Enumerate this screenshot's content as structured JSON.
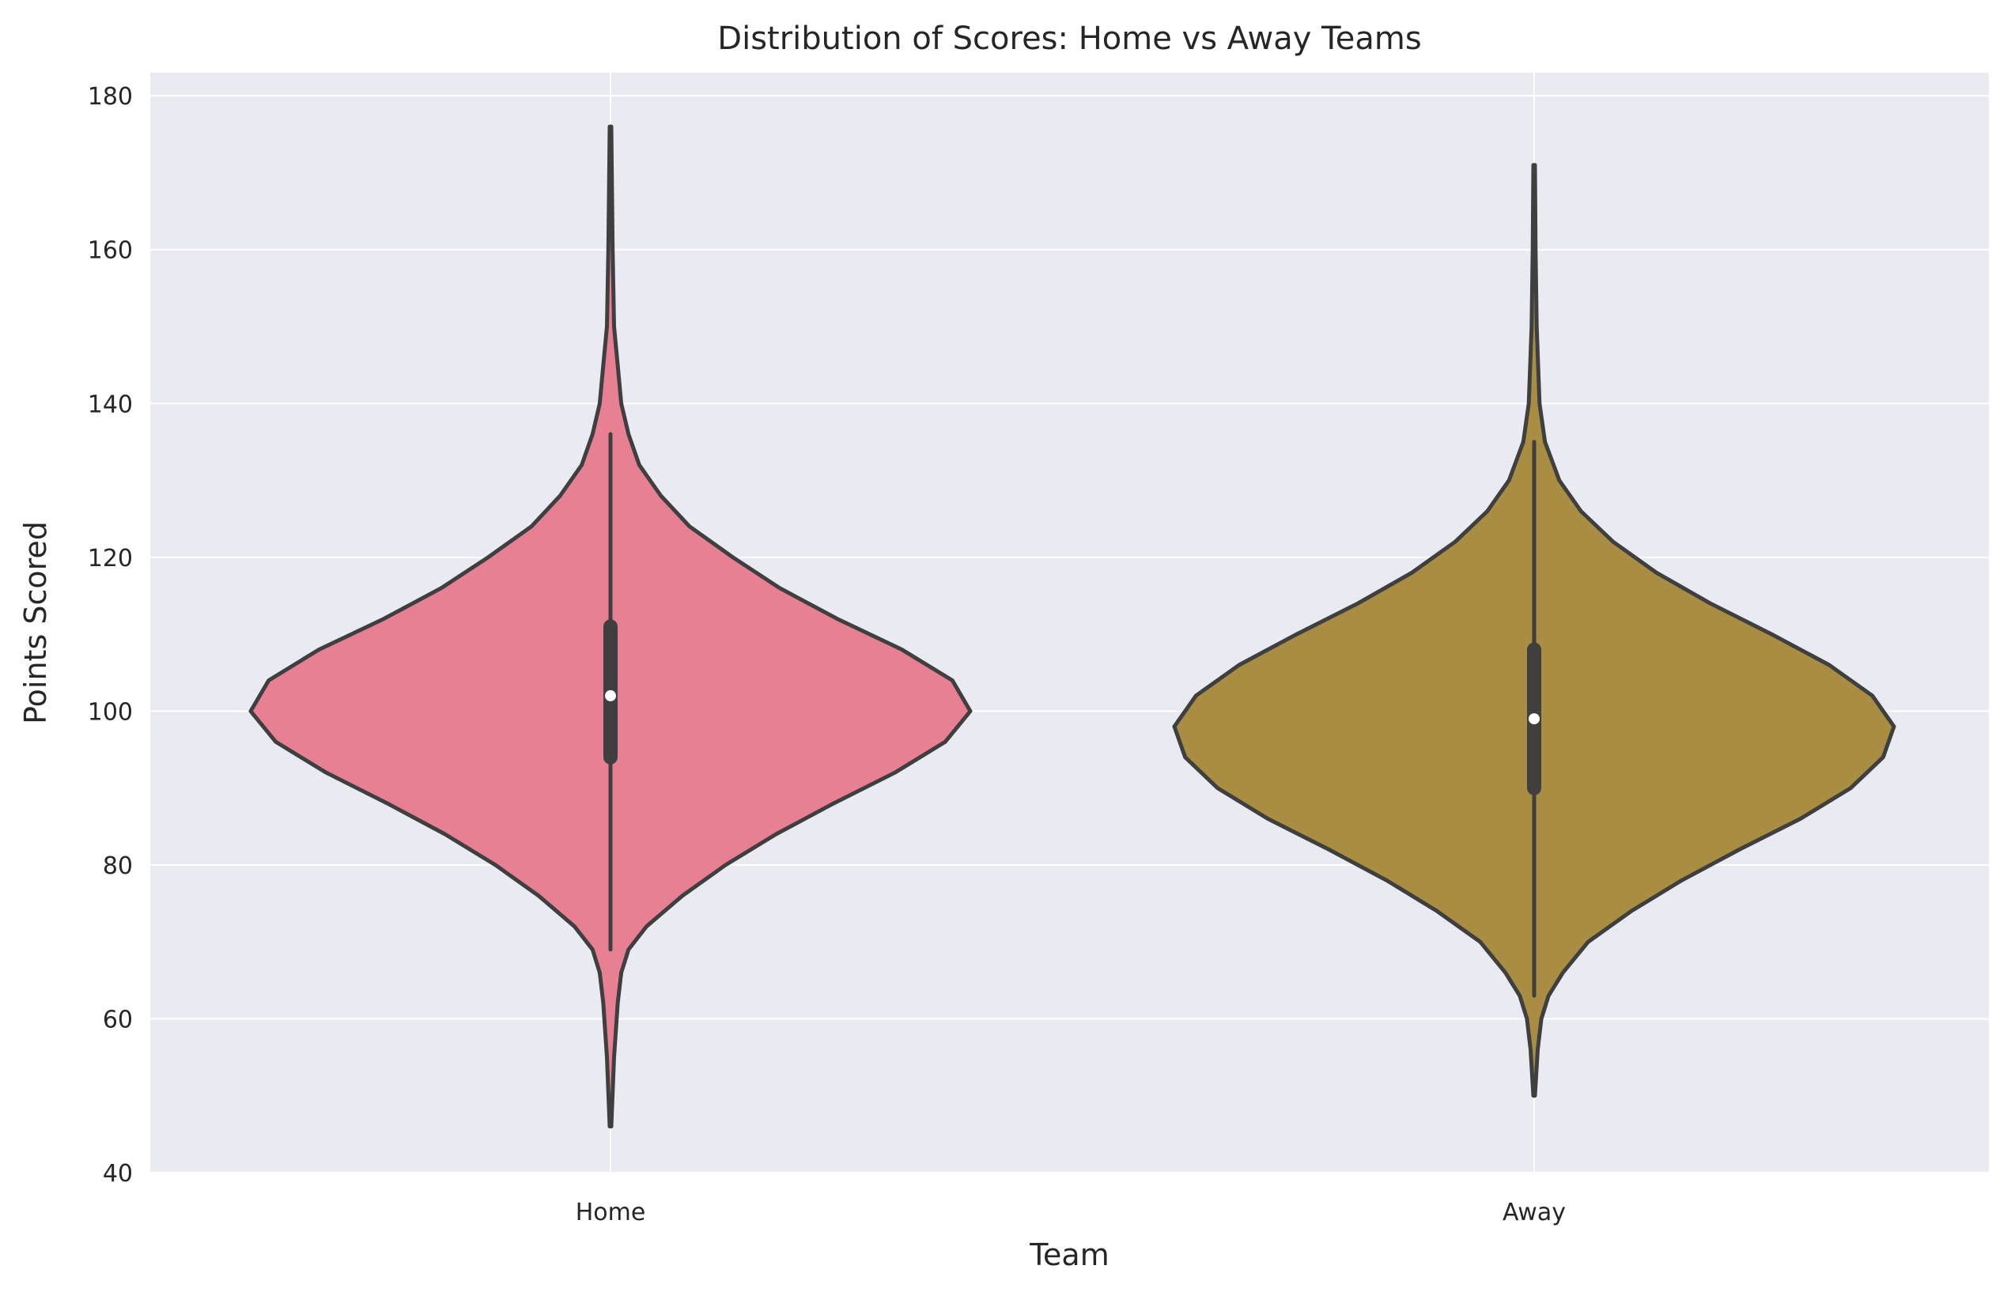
{
  "chart_data": {
    "type": "violin",
    "title": "Distribution of Scores: Home vs Away Teams",
    "xlabel": "Team",
    "ylabel": "Points Scored",
    "categories": [
      "Home",
      "Away"
    ],
    "ylim": [
      40,
      183
    ],
    "yticks": [
      40,
      60,
      80,
      100,
      120,
      140,
      160,
      180
    ],
    "grid": true,
    "colors": {
      "background": "#eaeaf2",
      "grid": "#ffffff",
      "outline": "#3f3f3f",
      "Home": "#e78093",
      "Away": "#a88d42"
    },
    "series": [
      {
        "category": "Home",
        "min": 46,
        "q1": 94,
        "median": 102,
        "q3": 111,
        "max": 176,
        "whisker_low": 69,
        "whisker_high": 136,
        "density_profile": [
          {
            "y": 46,
            "width": 0.0
          },
          {
            "y": 55,
            "width": 0.01
          },
          {
            "y": 62,
            "width": 0.02
          },
          {
            "y": 66,
            "width": 0.03
          },
          {
            "y": 69,
            "width": 0.05
          },
          {
            "y": 72,
            "width": 0.1
          },
          {
            "y": 76,
            "width": 0.2
          },
          {
            "y": 80,
            "width": 0.32
          },
          {
            "y": 84,
            "width": 0.46
          },
          {
            "y": 88,
            "width": 0.62
          },
          {
            "y": 92,
            "width": 0.79
          },
          {
            "y": 96,
            "width": 0.93
          },
          {
            "y": 100,
            "width": 1.0
          },
          {
            "y": 104,
            "width": 0.95
          },
          {
            "y": 108,
            "width": 0.81
          },
          {
            "y": 112,
            "width": 0.63
          },
          {
            "y": 116,
            "width": 0.47
          },
          {
            "y": 120,
            "width": 0.34
          },
          {
            "y": 124,
            "width": 0.22
          },
          {
            "y": 128,
            "width": 0.14
          },
          {
            "y": 132,
            "width": 0.08
          },
          {
            "y": 136,
            "width": 0.05
          },
          {
            "y": 140,
            "width": 0.03
          },
          {
            "y": 145,
            "width": 0.02
          },
          {
            "y": 150,
            "width": 0.01
          },
          {
            "y": 160,
            "width": 0.006
          },
          {
            "y": 176,
            "width": 0.0
          }
        ]
      },
      {
        "category": "Away",
        "min": 50,
        "q1": 90,
        "median": 99,
        "q3": 108,
        "max": 171,
        "whisker_low": 63,
        "whisker_high": 135,
        "density_profile": [
          {
            "y": 50,
            "width": 0.0
          },
          {
            "y": 56,
            "width": 0.01
          },
          {
            "y": 60,
            "width": 0.02
          },
          {
            "y": 63,
            "width": 0.04
          },
          {
            "y": 66,
            "width": 0.08
          },
          {
            "y": 70,
            "width": 0.15
          },
          {
            "y": 74,
            "width": 0.27
          },
          {
            "y": 78,
            "width": 0.41
          },
          {
            "y": 82,
            "width": 0.57
          },
          {
            "y": 86,
            "width": 0.74
          },
          {
            "y": 90,
            "width": 0.88
          },
          {
            "y": 94,
            "width": 0.97
          },
          {
            "y": 98,
            "width": 1.0
          },
          {
            "y": 102,
            "width": 0.94
          },
          {
            "y": 106,
            "width": 0.82
          },
          {
            "y": 110,
            "width": 0.66
          },
          {
            "y": 114,
            "width": 0.49
          },
          {
            "y": 118,
            "width": 0.34
          },
          {
            "y": 122,
            "width": 0.22
          },
          {
            "y": 126,
            "width": 0.13
          },
          {
            "y": 130,
            "width": 0.07
          },
          {
            "y": 135,
            "width": 0.03
          },
          {
            "y": 140,
            "width": 0.015
          },
          {
            "y": 150,
            "width": 0.007
          },
          {
            "y": 160,
            "width": 0.004
          },
          {
            "y": 171,
            "width": 0.0
          }
        ]
      }
    ]
  }
}
